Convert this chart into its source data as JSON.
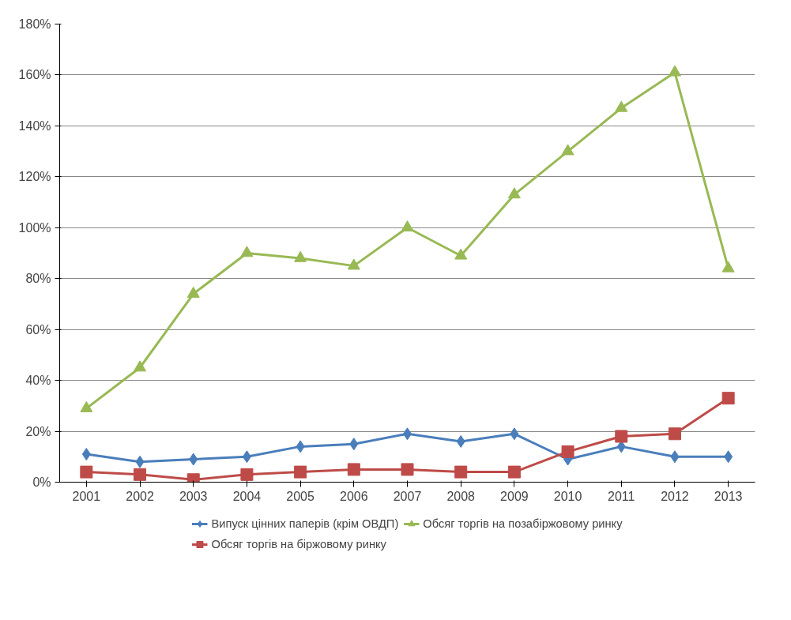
{
  "chart_data": {
    "type": "line",
    "categories": [
      "2001",
      "2002",
      "2003",
      "2004",
      "2005",
      "2006",
      "2007",
      "2008",
      "2009",
      "2010",
      "2011",
      "2012",
      "2013"
    ],
    "series": [
      {
        "name": "Випуск цінних паперів (крім ОВДП)",
        "color": "#4a7ebb",
        "marker": "diamond",
        "values": [
          11,
          8,
          9,
          10,
          14,
          15,
          19,
          16,
          19,
          9,
          14,
          10,
          10
        ]
      },
      {
        "name": "Обсяг торгів на біржовому ринку",
        "color": "#be4b48",
        "marker": "square",
        "values": [
          4,
          3,
          1,
          3,
          4,
          5,
          5,
          4,
          4,
          12,
          18,
          19,
          33
        ]
      },
      {
        "name": "Обсяг торгів на позабіржовому ринку",
        "color": "#98b954",
        "marker": "triangle",
        "values": [
          29,
          45,
          74,
          90,
          88,
          85,
          100,
          89,
          113,
          130,
          147,
          161,
          84
        ]
      }
    ],
    "ylim": [
      0,
      180
    ],
    "yticks": [
      {
        "value": 0,
        "label": "0%"
      },
      {
        "value": 20,
        "label": "20%"
      },
      {
        "value": 40,
        "label": "40%"
      },
      {
        "value": 60,
        "label": "60%"
      },
      {
        "value": 80,
        "label": "80%"
      },
      {
        "value": 100,
        "label": "100%"
      },
      {
        "value": 120,
        "label": "120%"
      },
      {
        "value": 140,
        "label": "140%"
      },
      {
        "value": 160,
        "label": "160%"
      },
      {
        "value": 180,
        "label": "180%"
      }
    ],
    "grid": "y",
    "legend": "bottom",
    "line_style": "solid"
  }
}
